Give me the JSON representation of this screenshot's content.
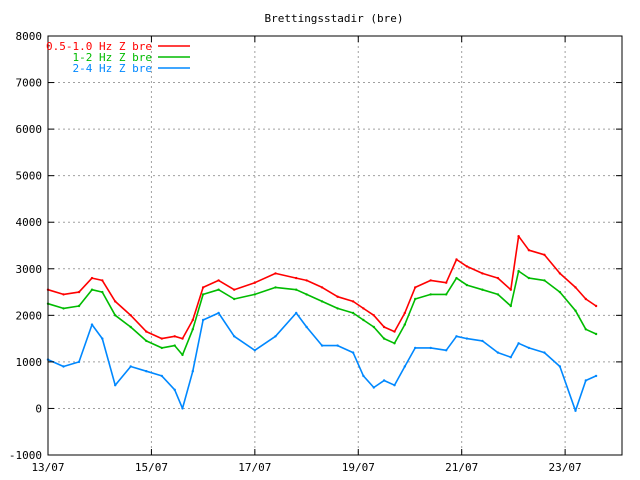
{
  "chart_data": {
    "type": "line",
    "title": "Brettingsstadir (bre)",
    "xlabel": "",
    "ylabel": "",
    "x_tick_labels": [
      "13/07",
      "15/07",
      "17/07",
      "19/07",
      "21/07",
      "23/07"
    ],
    "x_tick_days": [
      13,
      15,
      17,
      19,
      21,
      23
    ],
    "xlim": [
      13,
      24.1
    ],
    "ylim": [
      -1000,
      8000
    ],
    "y_ticks": [
      -1000,
      0,
      1000,
      2000,
      3000,
      4000,
      5000,
      6000,
      7000,
      8000
    ],
    "grid": true,
    "legend_position": "top-left",
    "series": [
      {
        "name": "0.5-1.0 Hz Z bre",
        "color": "#ff0000",
        "x": [
          13.0,
          13.3,
          13.6,
          13.85,
          14.05,
          14.3,
          14.6,
          14.9,
          15.2,
          15.45,
          15.6,
          15.8,
          16.0,
          16.3,
          16.6,
          17.0,
          17.4,
          17.8,
          18.0,
          18.3,
          18.6,
          18.9,
          19.1,
          19.3,
          19.5,
          19.7,
          19.9,
          20.1,
          20.4,
          20.7,
          20.9,
          21.1,
          21.4,
          21.7,
          21.95,
          22.1,
          22.3,
          22.6,
          22.9,
          23.2,
          23.4,
          23.6
        ],
        "y": [
          2550,
          2450,
          2500,
          2800,
          2750,
          2300,
          2000,
          1650,
          1500,
          1550,
          1500,
          1900,
          2600,
          2750,
          2550,
          2700,
          2900,
          2800,
          2750,
          2600,
          2400,
          2300,
          2150,
          2000,
          1750,
          1650,
          2050,
          2600,
          2750,
          2700,
          3200,
          3050,
          2900,
          2800,
          2550,
          3700,
          3400,
          3300,
          2900,
          2600,
          2350,
          2200
        ]
      },
      {
        "name": "1-2 Hz Z bre",
        "color": "#00bb00",
        "x": [
          13.0,
          13.3,
          13.6,
          13.85,
          14.05,
          14.3,
          14.6,
          14.9,
          15.2,
          15.45,
          15.6,
          15.8,
          16.0,
          16.3,
          16.6,
          17.0,
          17.4,
          17.8,
          18.0,
          18.3,
          18.6,
          18.9,
          19.1,
          19.3,
          19.5,
          19.7,
          19.9,
          20.1,
          20.4,
          20.7,
          20.9,
          21.1,
          21.4,
          21.7,
          21.95,
          22.1,
          22.3,
          22.6,
          22.9,
          23.2,
          23.4,
          23.6
        ],
        "y": [
          2250,
          2150,
          2200,
          2550,
          2500,
          2000,
          1750,
          1450,
          1300,
          1350,
          1150,
          1700,
          2450,
          2550,
          2350,
          2450,
          2600,
          2550,
          2450,
          2300,
          2150,
          2050,
          1900,
          1750,
          1500,
          1400,
          1800,
          2350,
          2450,
          2450,
          2800,
          2650,
          2550,
          2450,
          2200,
          2950,
          2800,
          2750,
          2500,
          2100,
          1700,
          1600
        ]
      },
      {
        "name": "2-4 Hz Z bre",
        "color": "#0088ff",
        "x": [
          13.0,
          13.3,
          13.6,
          13.85,
          14.05,
          14.3,
          14.6,
          14.9,
          15.2,
          15.45,
          15.6,
          15.8,
          16.0,
          16.3,
          16.6,
          17.0,
          17.4,
          17.8,
          18.0,
          18.3,
          18.6,
          18.9,
          19.1,
          19.3,
          19.5,
          19.7,
          19.9,
          20.1,
          20.4,
          20.7,
          20.9,
          21.1,
          21.4,
          21.7,
          21.95,
          22.1,
          22.3,
          22.6,
          22.9,
          23.2,
          23.4,
          23.6
        ],
        "y": [
          1050,
          900,
          1000,
          1800,
          1500,
          500,
          900,
          800,
          700,
          400,
          0,
          800,
          1900,
          2050,
          1550,
          1250,
          1550,
          2050,
          1750,
          1350,
          1350,
          1200,
          700,
          450,
          600,
          500,
          900,
          1300,
          1300,
          1250,
          1550,
          1500,
          1450,
          1200,
          1100,
          1400,
          1300,
          1200,
          900,
          -50,
          600,
          700
        ]
      }
    ]
  }
}
